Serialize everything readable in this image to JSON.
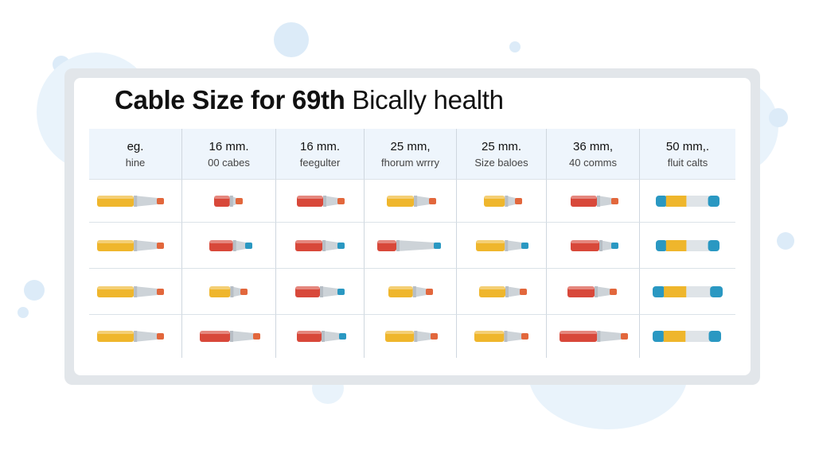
{
  "title": {
    "bold": "Cable Size for 69th",
    "light": "Bically health"
  },
  "columns": [
    {
      "size": "eg.",
      "desc": "hine"
    },
    {
      "size": "16 mm.",
      "desc": "00 cabes"
    },
    {
      "size": "16 mm.",
      "desc": "feegulter"
    },
    {
      "size": "25 mm,",
      "desc": "fhorum wrrry"
    },
    {
      "size": "25 mm.",
      "desc": "Size baloes"
    },
    {
      "size": "36 mm,",
      "desc": "40 comms"
    },
    {
      "size": "50 mm,.",
      "desc": "fluit calts"
    }
  ],
  "colors": {
    "yellow": "#efb62c",
    "red": "#d8483a",
    "teal": "#2a98c2",
    "metal": "#cdd3d8",
    "tip_orange": "#e2673c"
  },
  "icon": "cable-connector-icon"
}
